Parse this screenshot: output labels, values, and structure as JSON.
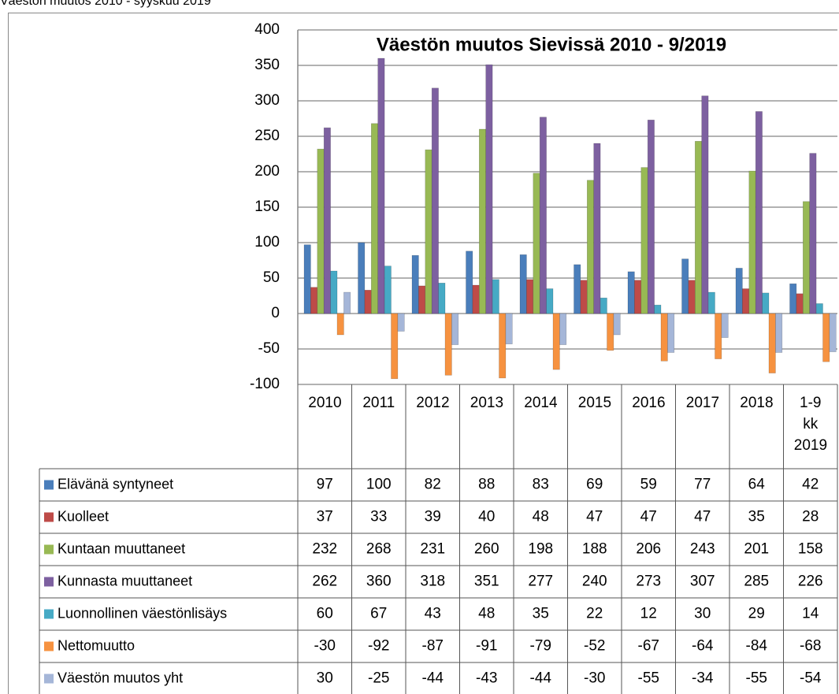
{
  "caption": "Väestön muutos 2010 - syyskuu 2019",
  "chart_data": {
    "type": "bar",
    "title": "Väestön muutos Sievissä 2010 - 9/2019",
    "categories": [
      "2010",
      "2011",
      "2012",
      "2013",
      "2014",
      "2015",
      "2016",
      "2017",
      "2018",
      "1-9 kk 2019"
    ],
    "series": [
      {
        "name": "Elävänä syntyneet",
        "color": "#4a7ebb",
        "values": [
          97,
          100,
          82,
          88,
          83,
          69,
          59,
          77,
          64,
          42
        ]
      },
      {
        "name": "Kuolleet",
        "color": "#be4b48",
        "values": [
          37,
          33,
          39,
          40,
          48,
          47,
          47,
          47,
          35,
          28
        ]
      },
      {
        "name": "Kuntaan muuttaneet",
        "color": "#98b954",
        "values": [
          232,
          268,
          231,
          260,
          198,
          188,
          206,
          243,
          201,
          158
        ]
      },
      {
        "name": "Kunnasta muuttaneet",
        "color": "#7d60a0",
        "values": [
          262,
          360,
          318,
          351,
          277,
          240,
          273,
          307,
          285,
          226
        ]
      },
      {
        "name": "Luonnollinen väestönlisäys",
        "color": "#46aac5",
        "values": [
          60,
          67,
          43,
          48,
          35,
          22,
          12,
          30,
          29,
          14
        ]
      },
      {
        "name": "Nettomuutto",
        "color": "#f69240",
        "values": [
          -30,
          -92,
          -87,
          -91,
          -79,
          -52,
          -67,
          -64,
          -84,
          -68
        ]
      },
      {
        "name": "Väestön muutos yht",
        "color": "#a5b6d8",
        "values": [
          30,
          -25,
          -44,
          -43,
          -44,
          -30,
          -55,
          -34,
          -55,
          -54
        ]
      }
    ],
    "ylim": [
      -100,
      400
    ],
    "yticks": [
      -100,
      -50,
      0,
      50,
      100,
      150,
      200,
      250,
      300,
      350,
      400
    ],
    "grid": true,
    "legend": "data table"
  }
}
